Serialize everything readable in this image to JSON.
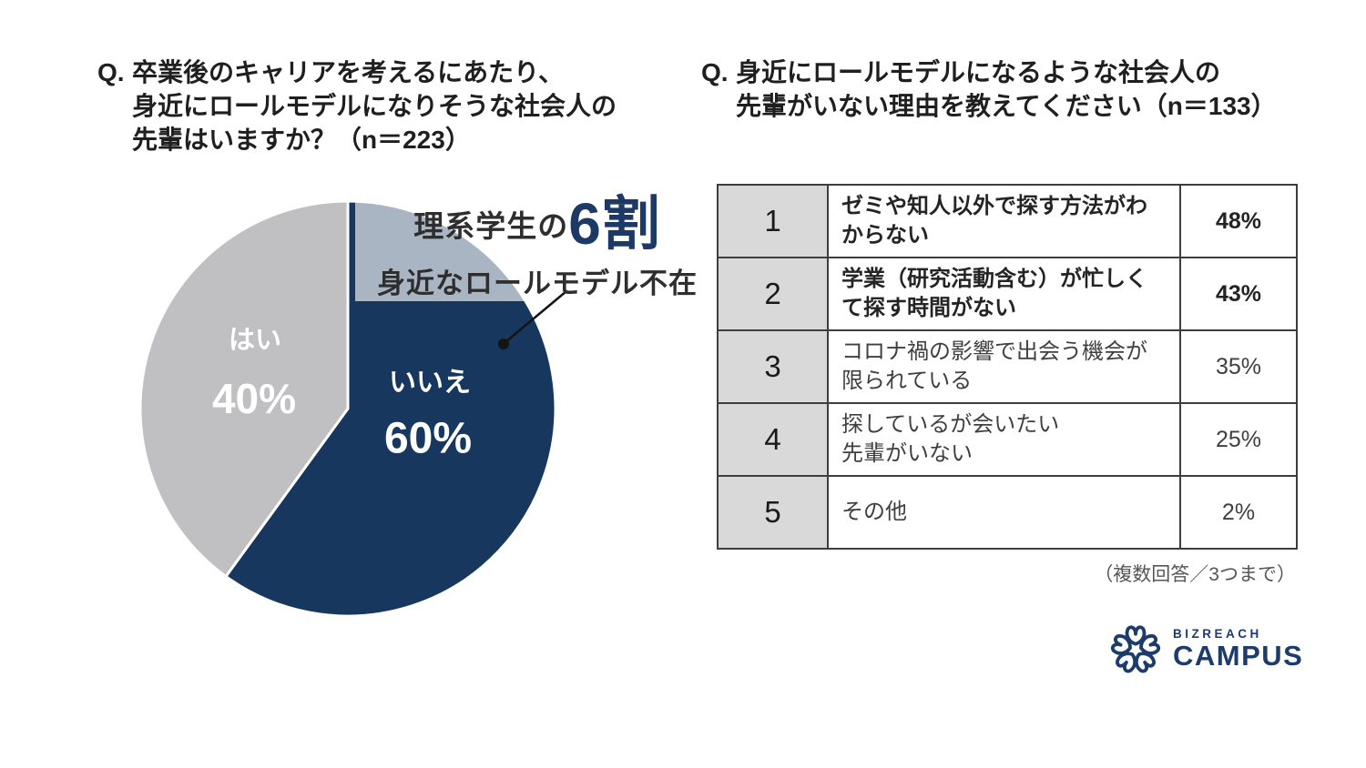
{
  "colors": {
    "pie_no_navy": "#17375e",
    "pie_yes_gray": "#c0c0c3",
    "accent_navy": "#1d3a66",
    "table_border": "#3d3d3d",
    "rank_cell_bg": "#d9d9d9",
    "title_text": "#1f1f1f",
    "logo_navy": "#1d3c69"
  },
  "left_question": {
    "prefix": "Q.",
    "lines": [
      "卒業後のキャリアを考えるにあたり、",
      "身近にロールモデルになりそうな社会人の",
      "先輩はいますか？（n＝223）"
    ]
  },
  "right_question": {
    "prefix": "Q.",
    "lines": [
      "身近にロールモデルになるような社会人の",
      "先輩がいない理由を教えてください（n＝133）"
    ]
  },
  "chart_data": [
    {
      "type": "pie",
      "question": "卒業後のキャリアを考えるにあたり、身近にロールモデルになりそうな社会人の先輩はいますか？",
      "n": 223,
      "start_angle": "top",
      "direction": "clockwise",
      "slices": [
        {
          "label": "いいえ",
          "value": 60,
          "display": "60%",
          "color": "#17375e"
        },
        {
          "label": "はい",
          "value": 40,
          "display": "40%",
          "color": "#c0c0c3"
        }
      ],
      "annotation": {
        "lead": "理系学生の",
        "big": "6割",
        "sub": "身近なロールモデル不在"
      }
    },
    {
      "type": "table",
      "question": "身近にロールモデルになるような社会人の先輩がいない理由を教えてください",
      "n": 133,
      "columns": [
        "rank",
        "reason",
        "percent"
      ],
      "rows": [
        {
          "rank": "1",
          "reason": "ゼミや知人以外で探す方法がわからない",
          "percent": "48%",
          "value": 48,
          "bold": true
        },
        {
          "rank": "2",
          "reason": "学業（研究活動含む）が忙しくて探す時間がない",
          "percent": "43%",
          "value": 43,
          "bold": true
        },
        {
          "rank": "3",
          "reason": "コロナ禍の影響で出会う機会が限られている",
          "percent": "35%",
          "value": 35,
          "bold": false
        },
        {
          "rank": "4",
          "reason": "探しているが会いたい\n先輩がいない",
          "percent": "25%",
          "value": 25,
          "bold": false
        },
        {
          "rank": "5",
          "reason": "その他",
          "percent": "2%",
          "value": 2,
          "bold": false
        }
      ],
      "footnote": "（複数回答／3つまで）"
    }
  ],
  "logo": {
    "brand_top": "BIZREACH",
    "brand_bottom": "CAMPUS"
  }
}
